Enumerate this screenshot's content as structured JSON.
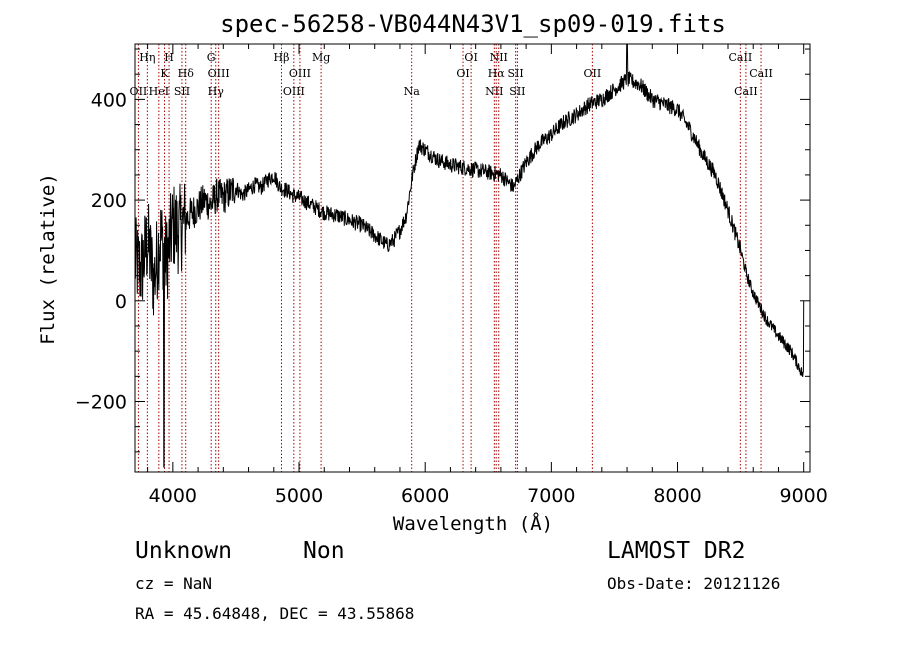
{
  "chart_data": {
    "type": "line",
    "title": "spec-56258-VB044N43V1_sp09-019.fits",
    "xlabel": "Wavelength (Å)",
    "ylabel": "Flux (relative)",
    "xlim": [
      3700,
      9050
    ],
    "ylim": [
      -340,
      510
    ],
    "x_ticks": [
      4000,
      5000,
      6000,
      7000,
      8000,
      9000
    ],
    "y_ticks": [
      -200,
      0,
      200,
      400
    ],
    "x_tick_labels": [
      "4000",
      "5000",
      "6000",
      "7000",
      "8000",
      "9000"
    ],
    "y_tick_labels": [
      "−200",
      "0",
      "200",
      "400"
    ],
    "grid": false,
    "series": [
      {
        "x": [
          3700,
          3750,
          3800,
          3850,
          3900,
          3950,
          4000,
          4050,
          4100,
          4150,
          4200,
          4250,
          4300,
          4350,
          4400,
          4450,
          4500,
          4550,
          4600,
          4650,
          4700,
          4750,
          4800,
          4850,
          4900,
          4950,
          5000,
          5100,
          5200,
          5300,
          5400,
          5500,
          5600,
          5700,
          5750,
          5800,
          5850,
          5900,
          5950,
          6000,
          6100,
          6200,
          6300,
          6400,
          6500,
          6600,
          6700,
          6800,
          6900,
          7000,
          7100,
          7200,
          7300,
          7400,
          7500,
          7600,
          7700,
          7800,
          7900,
          8000,
          8100,
          8200,
          8300,
          8400,
          8500,
          8550,
          8600,
          8650,
          8700,
          8800,
          8900,
          9000
        ],
        "y": [
          80,
          60,
          120,
          40,
          130,
          80,
          150,
          140,
          160,
          175,
          185,
          200,
          190,
          210,
          205,
          215,
          225,
          210,
          220,
          230,
          225,
          240,
          250,
          225,
          220,
          210,
          205,
          190,
          175,
          170,
          160,
          150,
          130,
          110,
          120,
          140,
          170,
          250,
          310,
          300,
          280,
          270,
          265,
          260,
          255,
          250,
          225,
          275,
          310,
          330,
          355,
          370,
          390,
          400,
          420,
          440,
          430,
          400,
          390,
          380,
          340,
          290,
          250,
          180,
          100,
          50,
          15,
          -10,
          -35,
          -70,
          -100,
          -150
        ]
      }
    ],
    "line_markers": [
      {
        "wavelength": 3727,
        "label": "OII",
        "row": 3
      },
      {
        "wavelength": 3798,
        "label": "Hη",
        "row": 1
      },
      {
        "wavelength": 3889,
        "label": "HeI",
        "row": 3
      },
      {
        "wavelength": 3934,
        "label": "K",
        "row": 2
      },
      {
        "wavelength": 3970,
        "label": "H",
        "row": 1
      },
      {
        "wavelength": 4072,
        "label": "SII",
        "row": 3
      },
      {
        "wavelength": 4102,
        "label": "Hδ",
        "row": 2
      },
      {
        "wavelength": 4304,
        "label": "G",
        "row": 1
      },
      {
        "wavelength": 4340,
        "label": "Hγ",
        "row": 4
      },
      {
        "wavelength": 4363,
        "label": "OIII",
        "row": 2
      },
      {
        "wavelength": 4861,
        "label": "Hβ",
        "row": 1
      },
      {
        "wavelength": 4959,
        "label": "OIII",
        "row": 4
      },
      {
        "wavelength": 5007,
        "label": "OIII",
        "row": 2
      },
      {
        "wavelength": 5175,
        "label": "Mg",
        "row": 1
      },
      {
        "wavelength": 5893,
        "label": "Na",
        "row": 4
      },
      {
        "wavelength": 6300,
        "label": "OI",
        "row": 2
      },
      {
        "wavelength": 6364,
        "label": "OI",
        "row": 1
      },
      {
        "wavelength": 6548,
        "label": "NII",
        "row": 4
      },
      {
        "wavelength": 6563,
        "label": "Hα",
        "row": 2
      },
      {
        "wavelength": 6583,
        "label": "NII",
        "row": 1
      },
      {
        "wavelength": 6717,
        "label": "SII",
        "row": 2
      },
      {
        "wavelength": 6731,
        "label": "SII",
        "row": 4
      },
      {
        "wavelength": 7325,
        "label": "OII",
        "row": 2
      },
      {
        "wavelength": 8498,
        "label": "CaII",
        "row": 1
      },
      {
        "wavelength": 8542,
        "label": "CaII",
        "row": 3
      },
      {
        "wavelength": 8662,
        "label": "CaII",
        "row": 2
      }
    ]
  },
  "info": {
    "class": "Unknown",
    "subclass": "Non",
    "survey": "LAMOST DR2",
    "cz": "cz = NaN",
    "obs_date": "Obs-Date: 20121126",
    "coords": "RA =  45.64848, DEC =  43.55868"
  },
  "colors": {
    "spectrum": "#000000",
    "marker": "#aa0000"
  }
}
